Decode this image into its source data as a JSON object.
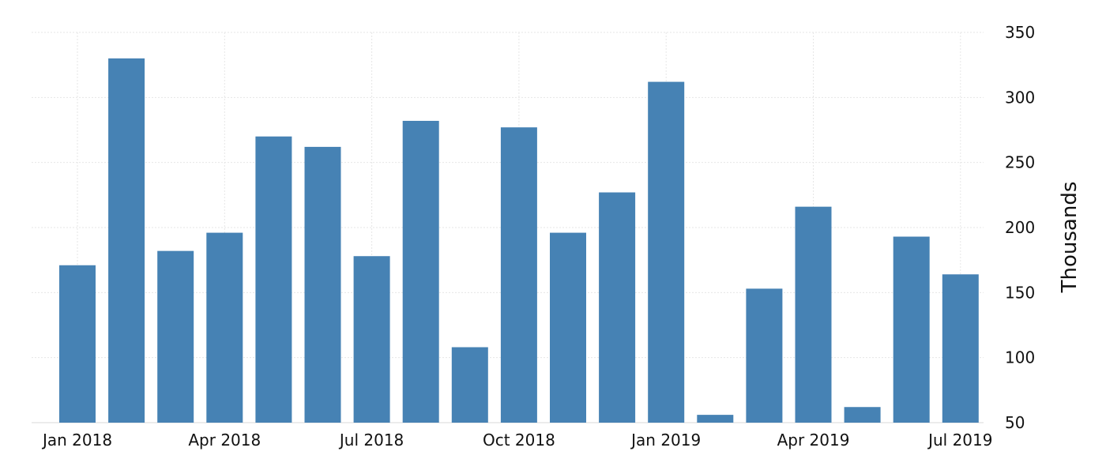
{
  "chart_data": {
    "type": "bar",
    "title": "",
    "xlabel": "",
    "ylabel": "Thousands",
    "ylim": [
      50,
      350
    ],
    "y_axis_side": "right",
    "grid": true,
    "legend": "none",
    "bar_color": "#4682b4",
    "yticks": [
      "350",
      "300",
      "250",
      "200",
      "150",
      "100",
      "50"
    ],
    "ytick_values": [
      350,
      300,
      250,
      200,
      150,
      100,
      50
    ],
    "x_tick_labels": [
      {
        "label": "Jan 2018",
        "index": 0
      },
      {
        "label": "Apr 2018",
        "index": 3
      },
      {
        "label": "Jul 2018",
        "index": 6
      },
      {
        "label": "Oct 2018",
        "index": 9
      },
      {
        "label": "Jan 2019",
        "index": 12
      },
      {
        "label": "Apr 2019",
        "index": 15
      },
      {
        "label": "Jul 2019",
        "index": 18
      }
    ],
    "categories": [
      "2018-01",
      "2018-02",
      "2018-03",
      "2018-04",
      "2018-05",
      "2018-06",
      "2018-07",
      "2018-08",
      "2018-09",
      "2018-10",
      "2018-11",
      "2018-12",
      "2019-01",
      "2019-02",
      "2019-03",
      "2019-04",
      "2019-05",
      "2019-06",
      "2019-07"
    ],
    "values": [
      171,
      330,
      182,
      196,
      270,
      262,
      178,
      282,
      108,
      277,
      196,
      227,
      312,
      56,
      153,
      216,
      62,
      193,
      164
    ]
  }
}
